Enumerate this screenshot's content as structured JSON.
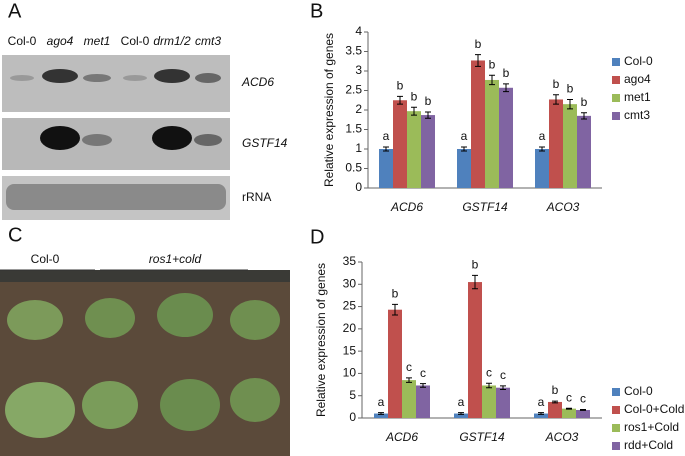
{
  "panel_a": {
    "letter": "A",
    "lanes": [
      "Col-0",
      "ago4",
      "met1",
      "Col-0",
      "drm1/2",
      "cmt3"
    ],
    "rows": [
      "ACD6",
      "GSTF14",
      "rRNA"
    ]
  },
  "panel_c": {
    "letter": "C",
    "groups": [
      "Col-0",
      "ros1+cold"
    ]
  },
  "chart_data": [
    {
      "type": "bar",
      "letter": "B",
      "y_label": "Relative expression of genes",
      "categories": [
        "ACD6",
        "GSTF14",
        "ACO3"
      ],
      "ylim": [
        0,
        4
      ],
      "yticks": [
        0,
        0.5,
        1,
        1.5,
        2,
        2.5,
        3,
        3.5,
        4
      ],
      "series": [
        {
          "name": "Col-0",
          "color": "#4f81bd",
          "values": [
            1,
            1,
            1
          ],
          "errors": [
            0.05,
            0.05,
            0.05
          ],
          "letters": [
            "a",
            "a",
            "a"
          ]
        },
        {
          "name": "ago4",
          "color": "#c0504d",
          "values": [
            2.25,
            3.27,
            2.27
          ],
          "errors": [
            0.1,
            0.15,
            0.12
          ],
          "letters": [
            "b",
            "b",
            "b"
          ]
        },
        {
          "name": "met1",
          "color": "#9bbb59",
          "values": [
            1.97,
            2.77,
            2.15
          ],
          "errors": [
            0.1,
            0.12,
            0.12
          ],
          "letters": [
            "b",
            "b",
            "b"
          ]
        },
        {
          "name": "cmt3",
          "color": "#8064a2",
          "values": [
            1.87,
            2.57,
            1.85
          ],
          "errors": [
            0.08,
            0.1,
            0.08
          ],
          "letters": [
            "b",
            "b",
            "b"
          ]
        }
      ]
    },
    {
      "type": "bar",
      "letter": "D",
      "y_label": "Relative expression of genes",
      "categories": [
        "ACD6",
        "GSTF14",
        "ACO3"
      ],
      "ylim": [
        0,
        35
      ],
      "yticks": [
        0,
        5,
        10,
        15,
        20,
        25,
        30,
        35
      ],
      "series": [
        {
          "name": "Col-0",
          "color": "#4f81bd",
          "values": [
            1,
            1,
            1
          ],
          "errors": [
            0.2,
            0.2,
            0.2
          ],
          "letters": [
            "a",
            "a",
            "a"
          ]
        },
        {
          "name": "Col-0+Cold",
          "color": "#c0504d",
          "values": [
            24.3,
            30.5,
            3.6
          ],
          "errors": [
            1.2,
            1.5,
            0.2
          ],
          "letters": [
            "b",
            "b",
            "b"
          ]
        },
        {
          "name": "ros1+Cold",
          "color": "#9bbb59",
          "values": [
            8.5,
            7.3,
            2.1
          ],
          "errors": [
            0.5,
            0.5,
            0.1
          ],
          "letters": [
            "c",
            "c",
            "c"
          ]
        },
        {
          "name": "rdd+Cold",
          "color": "#8064a2",
          "values": [
            7.3,
            6.8,
            1.8
          ],
          "errors": [
            0.4,
            0.4,
            0.1
          ],
          "letters": [
            "c",
            "c",
            "c"
          ]
        }
      ]
    }
  ]
}
